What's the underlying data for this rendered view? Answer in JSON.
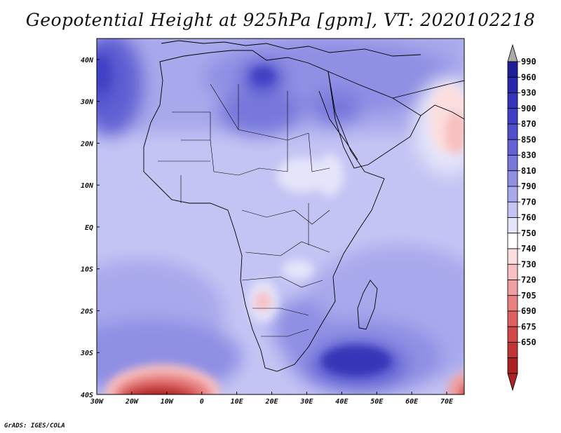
{
  "title": "Geopotential Height at 925hPa [gpm], VT: 2020102218",
  "credit": "GrADS: IGES/COLA",
  "map": {
    "region": "Africa",
    "lon_range": [
      -30,
      75
    ],
    "lat_range": [
      -40,
      45
    ],
    "lon_ticks": [
      {
        "lon": -30,
        "label": "30W"
      },
      {
        "lon": -20,
        "label": "20W"
      },
      {
        "lon": -10,
        "label": "10W"
      },
      {
        "lon": 0,
        "label": "0"
      },
      {
        "lon": 10,
        "label": "10E"
      },
      {
        "lon": 20,
        "label": "20E"
      },
      {
        "lon": 30,
        "label": "30E"
      },
      {
        "lon": 40,
        "label": "40E"
      },
      {
        "lon": 50,
        "label": "50E"
      },
      {
        "lon": 60,
        "label": "60E"
      },
      {
        "lon": 70,
        "label": "70E"
      }
    ],
    "lat_ticks": [
      {
        "lat": 40,
        "label": "40N"
      },
      {
        "lat": 30,
        "label": "30N"
      },
      {
        "lat": 20,
        "label": "20N"
      },
      {
        "lat": 10,
        "label": "10N"
      },
      {
        "lat": 0,
        "label": "EQ"
      },
      {
        "lat": -10,
        "label": "10S"
      },
      {
        "lat": -20,
        "label": "20S"
      },
      {
        "lat": -30,
        "label": "30S"
      },
      {
        "lat": -40,
        "label": "40S"
      }
    ]
  },
  "colorbar": {
    "labels": [
      "990",
      "960",
      "930",
      "900",
      "870",
      "850",
      "830",
      "810",
      "790",
      "770",
      "760",
      "750",
      "740",
      "730",
      "720",
      "705",
      "690",
      "675",
      "650"
    ],
    "colors": [
      "#aaaaaa",
      "#1e1e96",
      "#2828aa",
      "#3434b8",
      "#4040c4",
      "#5050cc",
      "#6262d4",
      "#7878dc",
      "#8f8fe4",
      "#a8a8ec",
      "#c4c4f4",
      "#e4e4fa",
      "#ffffff",
      "#fcdede",
      "#f8c0c0",
      "#f0a0a0",
      "#e88080",
      "#de6060",
      "#d04848",
      "#c03636",
      "#aa2222"
    ]
  }
}
